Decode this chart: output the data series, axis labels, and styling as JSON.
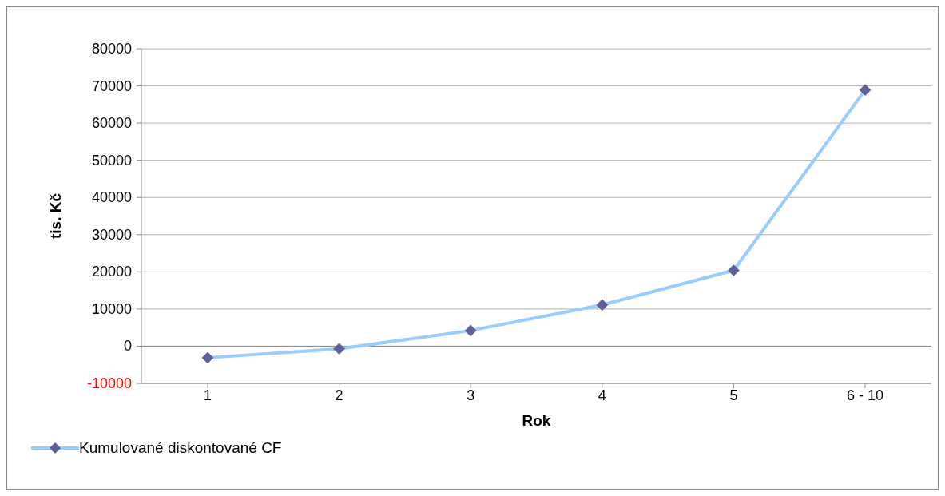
{
  "chart_data": {
    "type": "line",
    "xlabel": "Rok",
    "ylabel": "tis. Kč",
    "categories": [
      "1",
      "2",
      "3",
      "4",
      "5",
      "6 - 10"
    ],
    "series": [
      {
        "name": "Kumulované diskontované CF",
        "color": "#99ccff",
        "values": [
          -3100,
          -700,
          4200,
          11100,
          20400,
          68900
        ]
      }
    ],
    "ylim": [
      -10000,
      80000
    ],
    "yticks": [
      -10000,
      0,
      10000,
      20000,
      30000,
      40000,
      50000,
      60000,
      70000,
      80000
    ],
    "grid": "y",
    "legend": "bottom left",
    "marker": "diamond"
  }
}
